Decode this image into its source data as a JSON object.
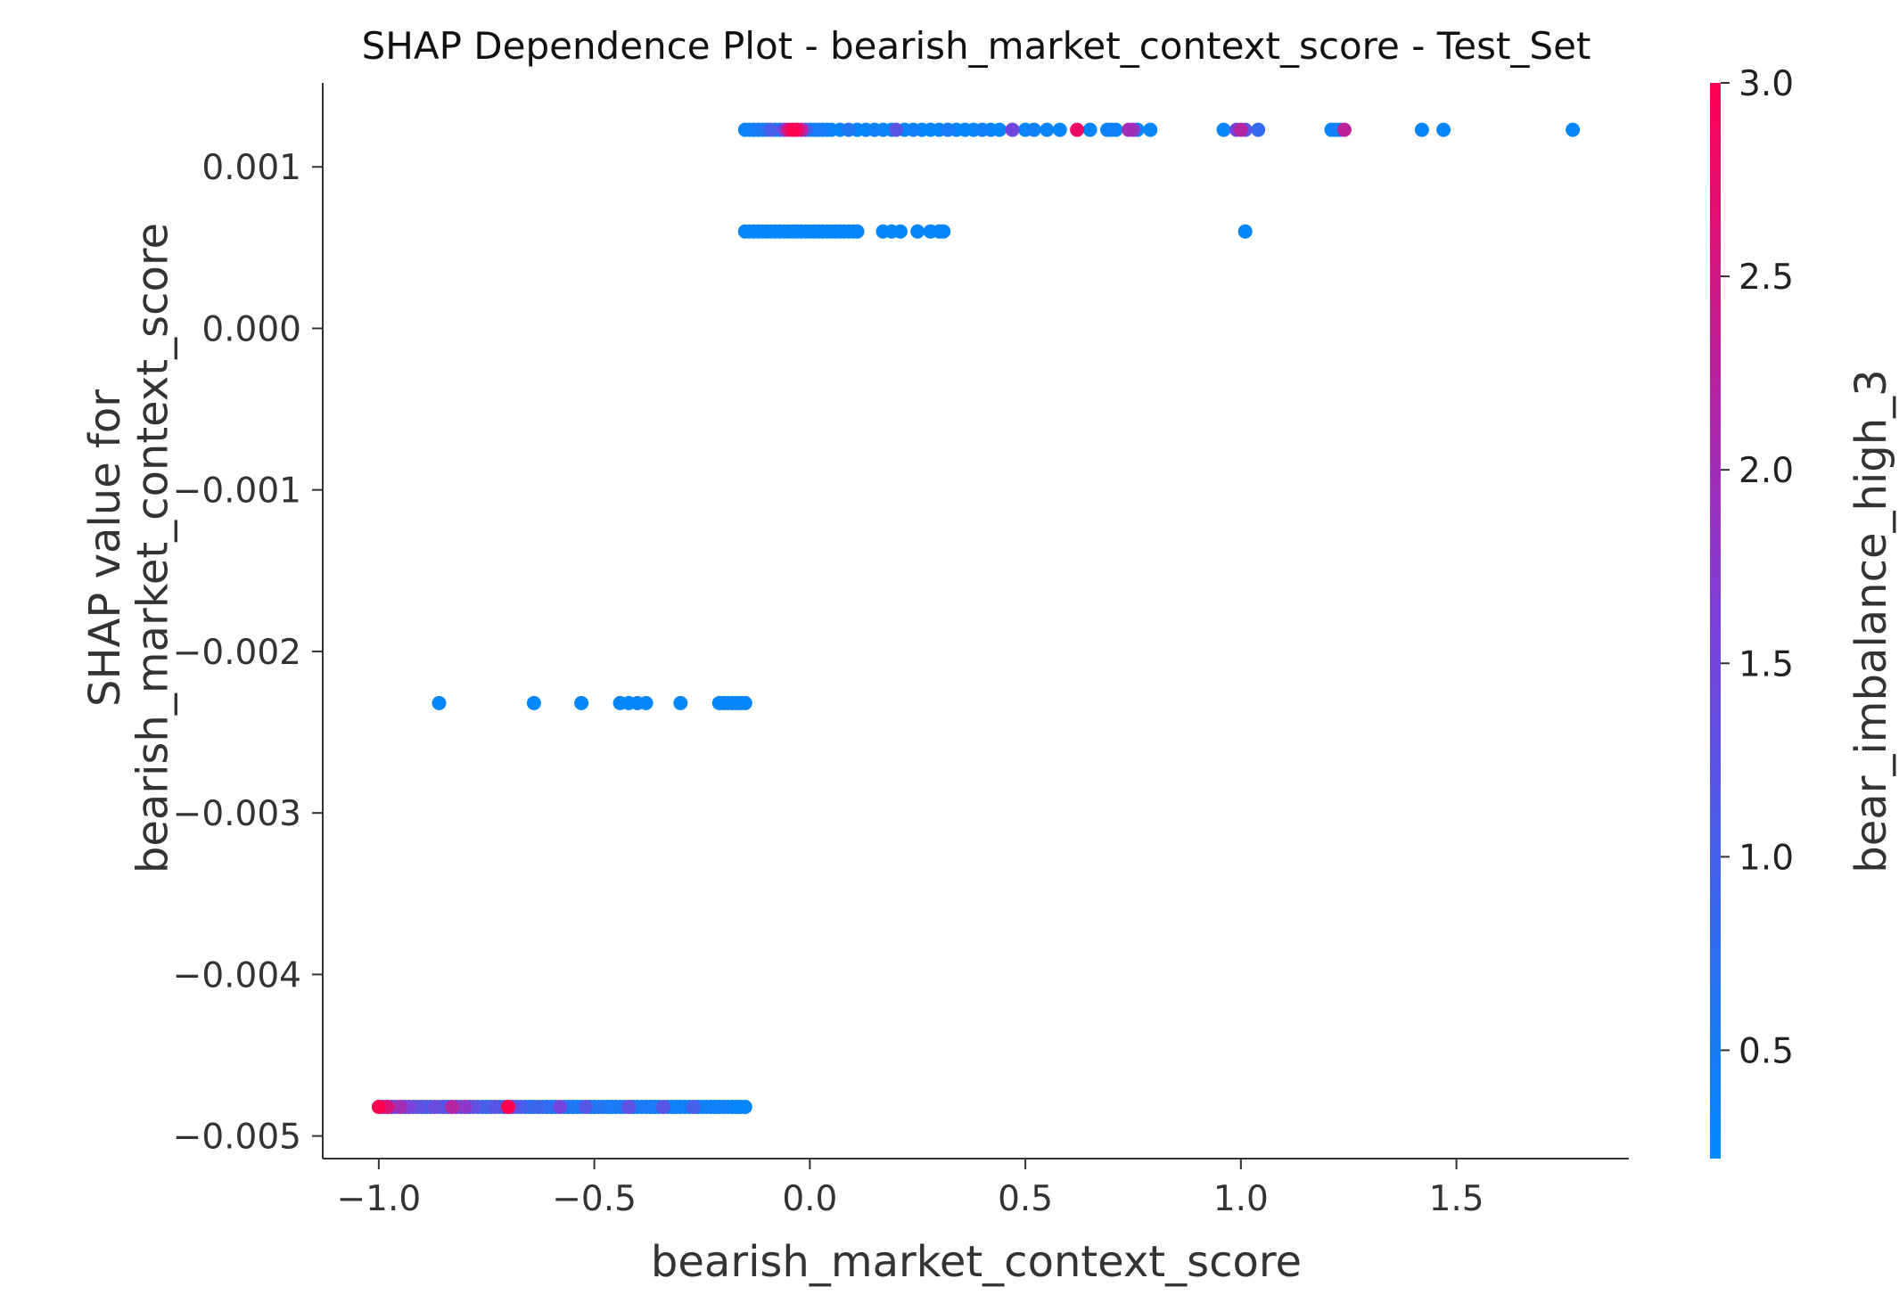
{
  "chart_data": {
    "type": "scatter",
    "title": "SHAP Dependence Plot - bearish_market_context_score - Test_Set",
    "xlabel": "bearish_market_context_score",
    "ylabel_line1": "SHAP value for",
    "ylabel_line2": "bearish_market_context_score",
    "xlim": [
      -1.13,
      1.9
    ],
    "ylim": [
      -0.00514,
      0.00152
    ],
    "xticks": [
      -1.0,
      -0.5,
      0.0,
      0.5,
      1.0,
      1.5
    ],
    "xtick_labels": [
      "−1.0",
      "−0.5",
      "0.0",
      "0.5",
      "1.0",
      "1.5"
    ],
    "yticks": [
      0.001,
      0.0,
      -0.001,
      -0.002,
      -0.003,
      -0.004,
      -0.005
    ],
    "ytick_labels": [
      "0.001",
      "0.000",
      "−0.001",
      "−0.002",
      "−0.003",
      "−0.004",
      "−0.005"
    ],
    "grid": false,
    "colorbar": {
      "label": "bear_imbalance_high_3",
      "range": [
        0.22,
        3.0
      ],
      "ticks": [
        3.0,
        2.5,
        2.0,
        1.5,
        1.0,
        0.5
      ],
      "tick_labels": [
        "3.0",
        "2.5",
        "2.0",
        "1.5",
        "1.0",
        "0.5"
      ],
      "low_color": "#008afb",
      "mid_color": "#7c40db",
      "high_color": "#ff0052"
    },
    "series": [
      {
        "y": 0.00123,
        "points": [
          [
            -0.15,
            0.3
          ],
          [
            -0.14,
            0.4
          ],
          [
            -0.13,
            0.3
          ],
          [
            -0.12,
            0.5
          ],
          [
            -0.11,
            0.3
          ],
          [
            -0.1,
            0.6
          ],
          [
            -0.09,
            1.0
          ],
          [
            -0.08,
            0.3
          ],
          [
            -0.07,
            0.4
          ],
          [
            -0.06,
            1.5
          ],
          [
            -0.05,
            2.5
          ],
          [
            -0.04,
            3.0
          ],
          [
            -0.03,
            2.8
          ],
          [
            -0.02,
            2.2
          ],
          [
            -0.01,
            1.0
          ],
          [
            0.0,
            0.4
          ],
          [
            0.01,
            0.3
          ],
          [
            0.02,
            0.5
          ],
          [
            0.03,
            0.3
          ],
          [
            0.04,
            0.4
          ],
          [
            0.05,
            0.3
          ],
          [
            0.07,
            0.3
          ],
          [
            0.09,
            0.6
          ],
          [
            0.11,
            0.3
          ],
          [
            0.13,
            0.3
          ],
          [
            0.15,
            0.4
          ],
          [
            0.17,
            0.3
          ],
          [
            0.19,
            0.3
          ],
          [
            0.2,
            1.2
          ],
          [
            0.22,
            0.3
          ],
          [
            0.24,
            0.4
          ],
          [
            0.26,
            0.3
          ],
          [
            0.28,
            0.3
          ],
          [
            0.3,
            0.3
          ],
          [
            0.32,
            0.5
          ],
          [
            0.34,
            0.3
          ],
          [
            0.36,
            0.3
          ],
          [
            0.38,
            0.3
          ],
          [
            0.4,
            0.4
          ],
          [
            0.42,
            0.3
          ],
          [
            0.44,
            0.3
          ],
          [
            0.47,
            1.5
          ],
          [
            0.5,
            0.3
          ],
          [
            0.52,
            0.4
          ],
          [
            0.55,
            0.3
          ],
          [
            0.58,
            0.3
          ],
          [
            0.62,
            2.8
          ],
          [
            0.65,
            0.3
          ],
          [
            0.69,
            0.3
          ],
          [
            0.7,
            0.4
          ],
          [
            0.71,
            0.3
          ],
          [
            0.74,
            2.0
          ],
          [
            0.75,
            1.8
          ],
          [
            0.76,
            0.3
          ],
          [
            0.79,
            0.3
          ],
          [
            0.96,
            0.3
          ],
          [
            0.99,
            1.5
          ],
          [
            1.0,
            2.2
          ],
          [
            1.01,
            1.2
          ],
          [
            1.04,
            0.8
          ],
          [
            1.21,
            0.3
          ],
          [
            1.22,
            0.4
          ],
          [
            1.23,
            0.3
          ],
          [
            1.24,
            2.3
          ],
          [
            1.42,
            0.3
          ],
          [
            1.47,
            0.3
          ],
          [
            1.77,
            0.3
          ]
        ]
      },
      {
        "y": 0.0006,
        "points": [
          [
            -0.15,
            0.3
          ],
          [
            -0.14,
            0.3
          ],
          [
            -0.13,
            0.3
          ],
          [
            -0.12,
            0.3
          ],
          [
            -0.11,
            0.3
          ],
          [
            -0.1,
            0.3
          ],
          [
            -0.09,
            0.3
          ],
          [
            -0.08,
            0.3
          ],
          [
            -0.07,
            0.3
          ],
          [
            -0.06,
            0.3
          ],
          [
            -0.05,
            0.3
          ],
          [
            -0.04,
            0.3
          ],
          [
            -0.03,
            0.3
          ],
          [
            -0.02,
            0.3
          ],
          [
            -0.01,
            0.3
          ],
          [
            0.0,
            0.3
          ],
          [
            0.01,
            0.3
          ],
          [
            0.02,
            0.3
          ],
          [
            0.03,
            0.3
          ],
          [
            0.04,
            0.3
          ],
          [
            0.05,
            0.3
          ],
          [
            0.06,
            0.3
          ],
          [
            0.07,
            0.3
          ],
          [
            0.08,
            0.3
          ],
          [
            0.09,
            0.3
          ],
          [
            0.1,
            0.3
          ],
          [
            0.11,
            0.3
          ],
          [
            0.17,
            0.3
          ],
          [
            0.19,
            0.3
          ],
          [
            0.21,
            0.3
          ],
          [
            0.25,
            0.3
          ],
          [
            0.28,
            0.3
          ],
          [
            0.3,
            0.3
          ],
          [
            0.31,
            0.3
          ],
          [
            1.01,
            0.3
          ]
        ]
      },
      {
        "y": -0.00232,
        "points": [
          [
            -0.86,
            0.3
          ],
          [
            -0.64,
            0.3
          ],
          [
            -0.53,
            0.3
          ],
          [
            -0.44,
            0.3
          ],
          [
            -0.42,
            0.3
          ],
          [
            -0.4,
            0.3
          ],
          [
            -0.38,
            0.3
          ],
          [
            -0.3,
            0.3
          ],
          [
            -0.21,
            0.3
          ],
          [
            -0.2,
            0.3
          ],
          [
            -0.19,
            0.3
          ],
          [
            -0.18,
            0.3
          ],
          [
            -0.17,
            0.3
          ],
          [
            -0.16,
            0.3
          ],
          [
            -0.15,
            0.3
          ]
        ]
      },
      {
        "y": -0.00482,
        "points": [
          [
            -1.0,
            3.0
          ],
          [
            -0.99,
            1.8
          ],
          [
            -0.98,
            2.6
          ],
          [
            -0.97,
            1.5
          ],
          [
            -0.96,
            1.2
          ],
          [
            -0.95,
            2.0
          ],
          [
            -0.94,
            1.0
          ],
          [
            -0.93,
            1.6
          ],
          [
            -0.92,
            0.8
          ],
          [
            -0.91,
            1.3
          ],
          [
            -0.9,
            0.9
          ],
          [
            -0.89,
            1.1
          ],
          [
            -0.88,
            0.8
          ],
          [
            -0.87,
            1.4
          ],
          [
            -0.86,
            0.9
          ],
          [
            -0.85,
            1.2
          ],
          [
            -0.84,
            0.7
          ],
          [
            -0.83,
            2.2
          ],
          [
            -0.82,
            1.5
          ],
          [
            -0.81,
            1.0
          ],
          [
            -0.8,
            1.8
          ],
          [
            -0.79,
            0.8
          ],
          [
            -0.78,
            1.3
          ],
          [
            -0.77,
            0.6
          ],
          [
            -0.76,
            1.0
          ],
          [
            -0.75,
            0.5
          ],
          [
            -0.74,
            0.9
          ],
          [
            -0.73,
            1.2
          ],
          [
            -0.72,
            0.7
          ],
          [
            -0.71,
            1.0
          ],
          [
            -0.7,
            3.0
          ],
          [
            -0.69,
            1.4
          ],
          [
            -0.68,
            0.6
          ],
          [
            -0.67,
            1.0
          ],
          [
            -0.66,
            0.5
          ],
          [
            -0.65,
            0.8
          ],
          [
            -0.64,
            0.5
          ],
          [
            -0.63,
            0.9
          ],
          [
            -0.62,
            0.4
          ],
          [
            -0.61,
            0.7
          ],
          [
            -0.6,
            0.4
          ],
          [
            -0.59,
            0.6
          ],
          [
            -0.58,
            1.5
          ],
          [
            -0.57,
            0.4
          ],
          [
            -0.56,
            0.6
          ],
          [
            -0.55,
            0.4
          ],
          [
            -0.54,
            0.5
          ],
          [
            -0.53,
            0.4
          ],
          [
            -0.52,
            1.2
          ],
          [
            -0.51,
            0.5
          ],
          [
            -0.5,
            0.4
          ],
          [
            -0.49,
            0.6
          ],
          [
            -0.48,
            0.4
          ],
          [
            -0.47,
            0.5
          ],
          [
            -0.46,
            0.3
          ],
          [
            -0.45,
            0.5
          ],
          [
            -0.44,
            0.4
          ],
          [
            -0.43,
            0.6
          ],
          [
            -0.42,
            1.3
          ],
          [
            -0.41,
            0.4
          ],
          [
            -0.4,
            0.5
          ],
          [
            -0.39,
            0.3
          ],
          [
            -0.38,
            0.5
          ],
          [
            -0.37,
            0.4
          ],
          [
            -0.36,
            0.3
          ],
          [
            -0.35,
            0.5
          ],
          [
            -0.34,
            1.2
          ],
          [
            -0.33,
            0.4
          ],
          [
            -0.32,
            0.3
          ],
          [
            -0.31,
            0.4
          ],
          [
            -0.3,
            0.3
          ],
          [
            -0.29,
            0.4
          ],
          [
            -0.28,
            0.3
          ],
          [
            -0.27,
            1.0
          ],
          [
            -0.26,
            0.3
          ],
          [
            -0.25,
            0.4
          ],
          [
            -0.24,
            0.3
          ],
          [
            -0.23,
            0.4
          ],
          [
            -0.22,
            0.3
          ],
          [
            -0.21,
            0.3
          ],
          [
            -0.2,
            0.4
          ],
          [
            -0.19,
            0.3
          ],
          [
            -0.18,
            0.3
          ],
          [
            -0.17,
            0.3
          ],
          [
            -0.16,
            0.3
          ],
          [
            -0.15,
            0.3
          ]
        ]
      }
    ]
  }
}
